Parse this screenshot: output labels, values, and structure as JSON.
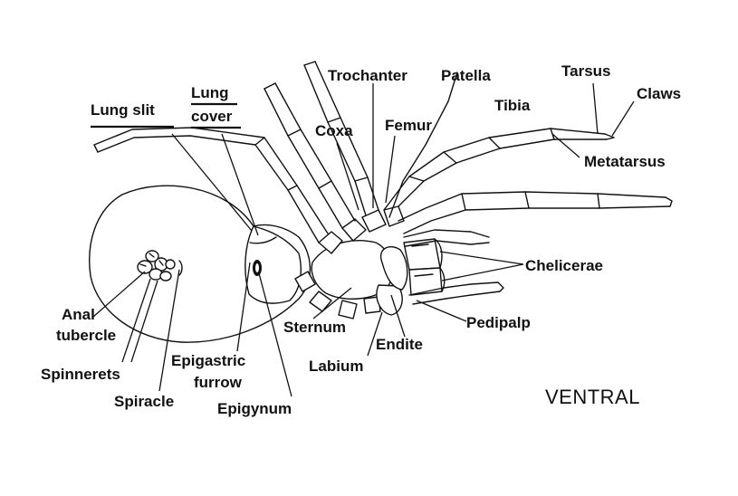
{
  "title": "VENTRAL",
  "labels": {
    "lung_slit": "Lung slit",
    "lung_cover_1": "Lung",
    "lung_cover_2": "cover",
    "trochanter": "Trochanter",
    "patella": "Patella",
    "tarsus": "Tarsus",
    "claws": "Claws",
    "coxa": "Coxa",
    "femur": "Femur",
    "tibia": "Tibia",
    "metatarsus": "Metatarsus",
    "chelicerae": "Chelicerae",
    "pedipalp": "Pedipalp",
    "endite": "Endite",
    "labium": "Labium",
    "sternum": "Sternum",
    "anal_tubercle_1": "Anal",
    "anal_tubercle_2": "tubercle",
    "spinnerets": "Spinnerets",
    "spiracle": "Spiracle",
    "epigastric_furrow_1": "Epigastric",
    "epigastric_furrow_2": "furrow",
    "epigynum": "Epigynum"
  }
}
